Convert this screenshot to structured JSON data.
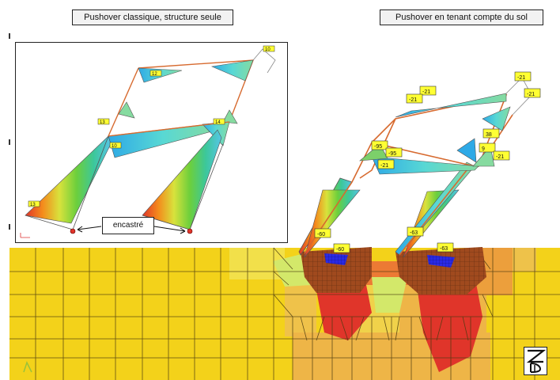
{
  "captions": {
    "left": "Pushover classique, structure seule",
    "right": "Pushover en tenant compte du sol"
  },
  "callout": {
    "text": "encastré"
  },
  "left_labels": [
    "10",
    "12",
    "13",
    "14",
    "10",
    "13"
  ],
  "right_labels": [
    "-21",
    "-21",
    "-21",
    "-21",
    "-95",
    "-95",
    "38",
    "9",
    "-21",
    "-21",
    "-60",
    "-60",
    "-63",
    "-63"
  ],
  "colors": {
    "soil_yellow": "#f3d21a",
    "soil_orange": "#e99a3a",
    "soil_red": "#e0352a",
    "mesh_brown": "#a04a1e",
    "frame_orange": "#d76a2f",
    "label_yellow": "#ffff33"
  },
  "logo": {
    "name": "brand-logo"
  }
}
